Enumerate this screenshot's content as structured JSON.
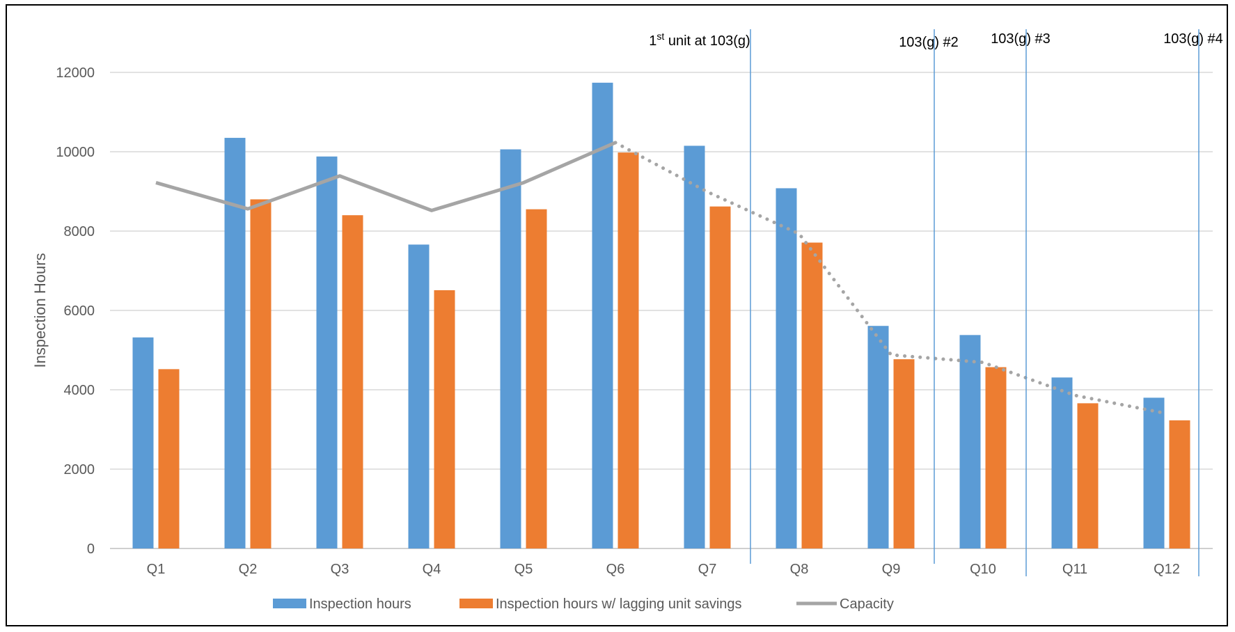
{
  "chart_data": {
    "type": "bar",
    "ylabel": "Inspection Hours",
    "ylim": [
      0,
      12000
    ],
    "ytick_step": 2000,
    "yticks": [
      "0",
      "2000",
      "4000",
      "6000",
      "8000",
      "10000",
      "12000"
    ],
    "grid": true,
    "legend_position": "bottom",
    "categories": [
      "Q1",
      "Q2",
      "Q3",
      "Q4",
      "Q5",
      "Q6",
      "Q7",
      "Q8",
      "Q9",
      "Q10",
      "Q11",
      "Q12"
    ],
    "series": [
      {
        "name": "Inspection hours",
        "type": "bar",
        "color": "#5B9BD5",
        "values": [
          5320,
          10350,
          9880,
          7660,
          10060,
          11740,
          10150,
          9080,
          5610,
          5380,
          4310,
          3800
        ]
      },
      {
        "name": "Inspection hours w/ lagging unit savings",
        "type": "bar",
        "color": "#ED7D31",
        "values": [
          4520,
          8800,
          8400,
          6510,
          8550,
          9980,
          8620,
          7710,
          4770,
          4570,
          3660,
          3230
        ]
      },
      {
        "name": "Capacity",
        "type": "line",
        "color": "#A5A5A5",
        "values": [
          9220,
          8560,
          9390,
          8520,
          9220,
          10230,
          8990,
          7930,
          4880,
          4690,
          3860,
          3400
        ],
        "solid_through_index": 5
      }
    ],
    "annotations": [
      {
        "after_category": "Q7",
        "base": "1",
        "superscript": "st",
        "text": " unit at 103(g)"
      },
      {
        "after_category": "Q9",
        "text": "103(g) #2"
      },
      {
        "after_category": "Q10",
        "text": "103(g) #3"
      },
      {
        "after_category": "Q12",
        "text": "103(g) #4"
      }
    ],
    "marker_line_color": "#5B9BD5"
  }
}
